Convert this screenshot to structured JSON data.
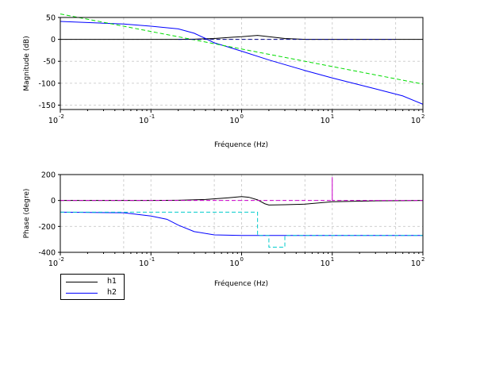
{
  "chart_data": [
    {
      "type": "line",
      "xscale": "log",
      "xlim": [
        0.01,
        100
      ],
      "ylim": [
        -160,
        50
      ],
      "xlabel": "Fréquence (Hz)",
      "ylabel": "Magnitude (dB)",
      "yticks": [
        50,
        0,
        -50,
        -100,
        -150
      ],
      "xticks": [
        {
          "base": "10",
          "exp": "-2"
        },
        {
          "base": "10",
          "exp": "-1"
        },
        {
          "base": "10",
          "exp": "0"
        },
        {
          "base": "10",
          "exp": "1"
        },
        {
          "base": "10",
          "exp": "2"
        }
      ],
      "grid": true,
      "series": [
        {
          "color": "#000000",
          "style": "solid",
          "x": [
            0.01,
            0.1,
            0.2,
            0.3,
            0.5,
            0.8,
            1.0,
            1.5,
            2.0,
            3.0,
            5.0,
            10,
            50,
            100
          ],
          "y": [
            0,
            0,
            0,
            0.5,
            2,
            5,
            6,
            9,
            6,
            2,
            0,
            0,
            0,
            0
          ]
        },
        {
          "color": "#0000ff",
          "style": "solid",
          "x": [
            0.01,
            0.05,
            0.1,
            0.2,
            0.3,
            0.4,
            0.5,
            0.7,
            1.0,
            2.0,
            5.0,
            10,
            30,
            60,
            100
          ],
          "y": [
            41,
            35,
            30,
            24,
            14,
            2,
            -8,
            -17,
            -27,
            -47,
            -71,
            -88,
            -113,
            -129,
            -148
          ]
        },
        {
          "color": "#00dd00",
          "style": "dashed",
          "x": [
            0.01,
            100
          ],
          "y": [
            58,
            -102
          ]
        },
        {
          "color": "#000080",
          "style": "dashed",
          "x": [
            0.2,
            1.5,
            2.0,
            10,
            50
          ],
          "y": [
            0,
            0,
            0,
            0,
            0
          ]
        }
      ]
    },
    {
      "type": "line",
      "xscale": "log",
      "xlim": [
        0.01,
        100
      ],
      "ylim": [
        -400,
        200
      ],
      "xlabel": "Fréquence (Hz)",
      "ylabel": "Phase (degre)",
      "yticks": [
        200,
        0,
        -200,
        -400
      ],
      "xticks": [
        {
          "base": "10",
          "exp": "-2"
        },
        {
          "base": "10",
          "exp": "-1"
        },
        {
          "base": "10",
          "exp": "0"
        },
        {
          "base": "10",
          "exp": "1"
        },
        {
          "base": "10",
          "exp": "2"
        }
      ],
      "grid": true,
      "series": [
        {
          "name": "h1",
          "color": "#000000",
          "style": "solid",
          "x": [
            0.01,
            0.1,
            0.2,
            0.4,
            0.7,
            1.0,
            1.2,
            1.5,
            1.8,
            2.0,
            3.0,
            5.0,
            10,
            30,
            100
          ],
          "y": [
            0,
            0,
            2,
            8,
            20,
            30,
            25,
            5,
            -25,
            -35,
            -33,
            -28,
            -10,
            -3,
            0
          ]
        },
        {
          "name": "h2",
          "color": "#0000ff",
          "style": "solid",
          "x": [
            0.01,
            0.05,
            0.1,
            0.15,
            0.2,
            0.3,
            0.5,
            1.0,
            1.5,
            100
          ],
          "y": [
            -90,
            -95,
            -120,
            -145,
            -190,
            -240,
            -265,
            -270,
            -270,
            -270
          ]
        },
        {
          "color": "#00cccc",
          "style": "dashed",
          "x": [
            0.01,
            1.5,
            1.5,
            2.0,
            2.0,
            3.0,
            3.0,
            100
          ],
          "y": [
            -90,
            -90,
            -270,
            -270,
            -360,
            -360,
            -270,
            -270
          ]
        },
        {
          "color": "#cc00cc",
          "style": "dashed",
          "x": [
            0.01,
            10,
            10,
            10,
            10.2,
            100
          ],
          "y": [
            0,
            0,
            180,
            0,
            0,
            0
          ]
        }
      ]
    }
  ],
  "legend": {
    "placement": "bottom-left",
    "entries": [
      {
        "label": "h1",
        "color": "#000000"
      },
      {
        "label": "h2",
        "color": "#0000ff"
      }
    ]
  }
}
